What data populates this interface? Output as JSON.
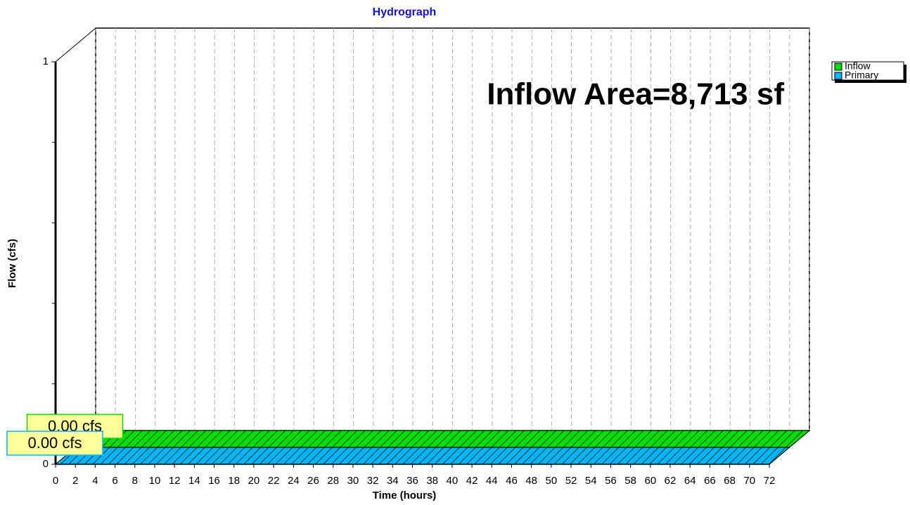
{
  "chart_data": {
    "type": "hydrograph",
    "title": "Hydrograph",
    "xlabel": "Time  (hours)",
    "ylabel": "Flow  (cfs)",
    "annotation": "Inflow Area=8,713 sf",
    "x": [
      0,
      72
    ],
    "series": [
      {
        "name": "Inflow",
        "color": "#00e000",
        "values": [
          0,
          0
        ],
        "peak": 0,
        "peak_label": "0.00 cfs"
      },
      {
        "name": "Primary",
        "color": "#00b4ff",
        "values": [
          0,
          0
        ],
        "peak": 0,
        "peak_label": "0.00 cfs"
      }
    ],
    "xlim": [
      0,
      72
    ],
    "xticks": [
      0,
      2,
      4,
      6,
      8,
      10,
      12,
      14,
      16,
      18,
      20,
      22,
      24,
      26,
      28,
      30,
      32,
      34,
      36,
      38,
      40,
      42,
      44,
      46,
      48,
      50,
      52,
      54,
      56,
      58,
      60,
      62,
      64,
      66,
      68,
      70,
      72
    ],
    "ylim": [
      0,
      1
    ],
    "yticks": [
      0,
      1
    ],
    "yminor_ticks": [
      0.2,
      0.4,
      0.6,
      0.8
    ],
    "grid": true,
    "legend": "top-right"
  }
}
